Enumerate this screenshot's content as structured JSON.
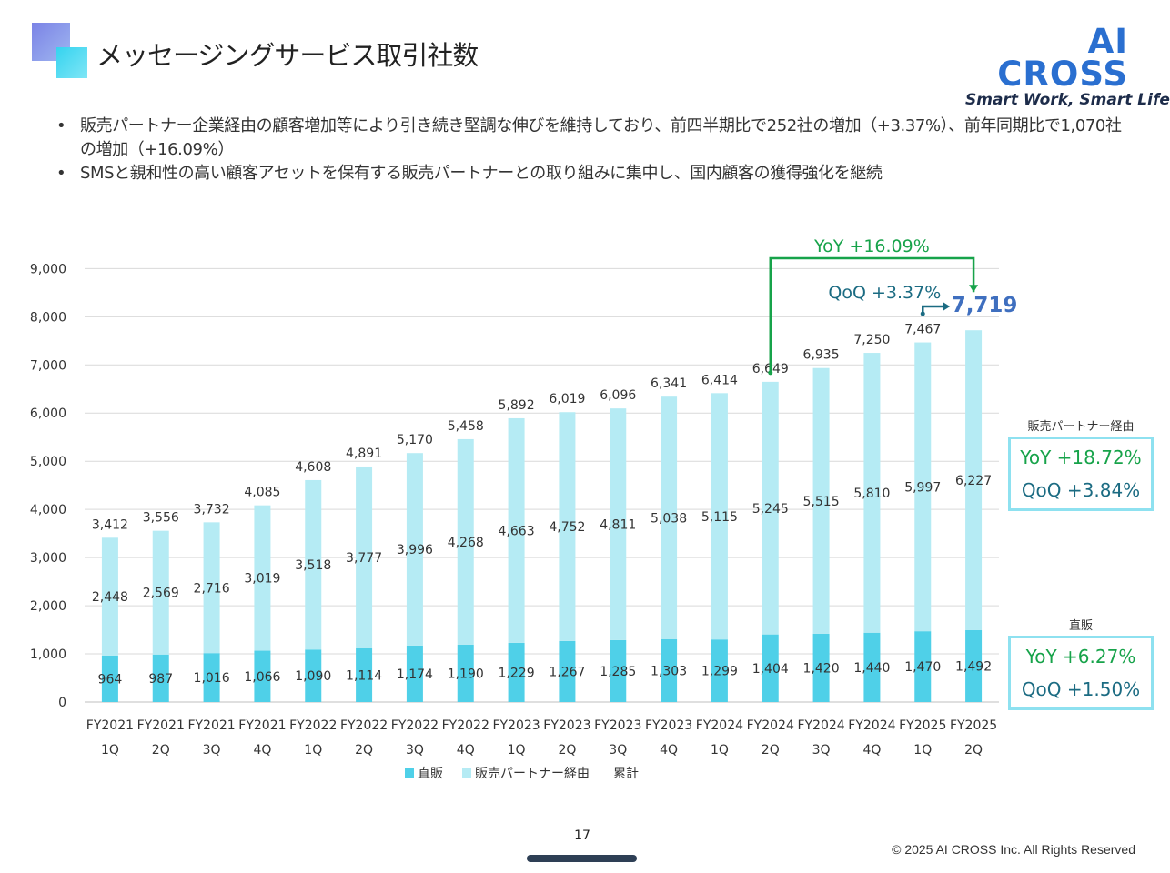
{
  "slide": {
    "title": "メッセージングサービス取引社数",
    "page_number": "17",
    "copyright": "© 2025 AI CROSS Inc. All Rights Reserved"
  },
  "logo": {
    "name": "AI CROSS",
    "tagline": "Smart Work, Smart Life"
  },
  "bullets": [
    "販売パートナー企業経由の顧客増加等により引き続き堅調な伸びを維持しており、前四半期比で252社の増加（+3.37%）、前年同期比で1,070社の増加（+16.09%）",
    "SMSと親和性の高い顧客アセットを保有する販売パートナーとの取り組みに集中し、国内顧客の獲得強化を継続"
  ],
  "side_panels": [
    {
      "label": "販売パートナー経由",
      "yoy": "YoY +18.72%",
      "qoq": "QoQ +3.84%"
    },
    {
      "label": "直販",
      "yoy": "YoY +6.27%",
      "qoq": "QoQ +1.50%"
    }
  ],
  "colors": {
    "direct": "#4fd0e8",
    "partner": "#b5ebf4",
    "yoy_green": "#17a34a",
    "qoq_teal": "#1b6b82",
    "latest_total": "#3f6fbf",
    "grid": "#d9d9d9"
  },
  "chart_data": {
    "type": "bar",
    "stacked": true,
    "categories": [
      [
        "FY2021",
        "1Q"
      ],
      [
        "FY2021",
        "2Q"
      ],
      [
        "FY2021",
        "3Q"
      ],
      [
        "FY2021",
        "4Q"
      ],
      [
        "FY2022",
        "1Q"
      ],
      [
        "FY2022",
        "2Q"
      ],
      [
        "FY2022",
        "3Q"
      ],
      [
        "FY2022",
        "4Q"
      ],
      [
        "FY2023",
        "1Q"
      ],
      [
        "FY2023",
        "2Q"
      ],
      [
        "FY2023",
        "3Q"
      ],
      [
        "FY2023",
        "4Q"
      ],
      [
        "FY2024",
        "1Q"
      ],
      [
        "FY2024",
        "2Q"
      ],
      [
        "FY2024",
        "3Q"
      ],
      [
        "FY2024",
        "4Q"
      ],
      [
        "FY2025",
        "1Q"
      ],
      [
        "FY2025",
        "2Q"
      ]
    ],
    "series": [
      {
        "name": "直販",
        "values": [
          964,
          987,
          1016,
          1066,
          1090,
          1114,
          1174,
          1190,
          1229,
          1267,
          1285,
          1303,
          1299,
          1404,
          1420,
          1440,
          1470,
          1492
        ]
      },
      {
        "name": "販売パートナー経由",
        "values": [
          2448,
          2569,
          2716,
          3019,
          3518,
          3777,
          3996,
          4268,
          4663,
          4752,
          4811,
          5038,
          5115,
          5245,
          5515,
          5810,
          5997,
          6227
        ]
      }
    ],
    "totals": {
      "name": "累計",
      "values": [
        3412,
        3556,
        3732,
        4085,
        4608,
        4891,
        5170,
        5458,
        5892,
        6019,
        6096,
        6341,
        6414,
        6649,
        6935,
        7250,
        7467,
        7719
      ]
    },
    "ylim": [
      0,
      9000
    ],
    "yticks": [
      0,
      1000,
      2000,
      3000,
      4000,
      5000,
      6000,
      7000,
      8000,
      9000
    ],
    "grid": true,
    "legend": "bottom",
    "annotations": {
      "yoy": "YoY +16.09%",
      "qoq": "QoQ +3.37%"
    }
  }
}
